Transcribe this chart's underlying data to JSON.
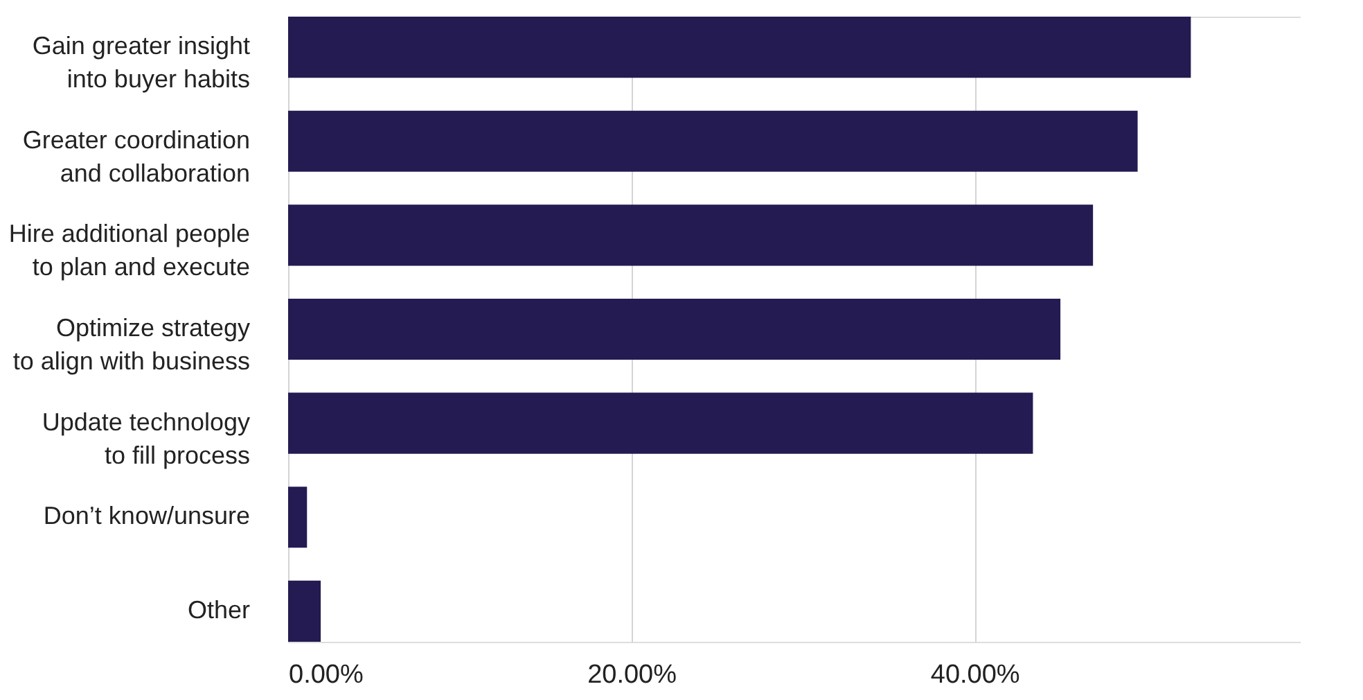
{
  "chart_data": {
    "type": "bar",
    "orientation": "horizontal",
    "categories": [
      "Gain greater insight\ninto buyer habits",
      "Greater coordination\nand collaboration",
      "Hire additional people\nto plan and execute",
      "Optimize strategy\nto align with business",
      "Update technology\nto fill process",
      "Don’t know/unsure",
      "Other"
    ],
    "values": [
      52.6,
      49.5,
      46.9,
      45.0,
      43.4,
      1.1,
      1.9
    ],
    "color": "#241b52",
    "xlim": [
      0,
      59
    ],
    "xticks": [
      {
        "value": 0,
        "label": "0.00%"
      },
      {
        "value": 20,
        "label": "20.00%"
      },
      {
        "value": 40,
        "label": "40.00%"
      }
    ],
    "grid": "x"
  }
}
